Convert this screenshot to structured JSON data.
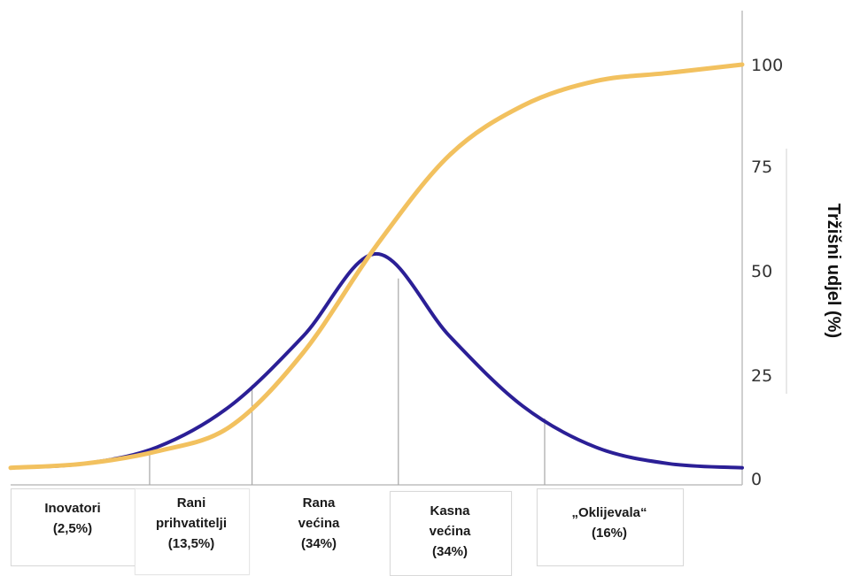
{
  "chart_data": {
    "type": "line",
    "xlabel": "",
    "ylabel": "Tržišni udjel (%)",
    "ylim": [
      0,
      100
    ],
    "yticks": [
      "0",
      "25",
      "50",
      "75",
      "100"
    ],
    "grid": false,
    "series": [
      {
        "color": "#2b1f96",
        "curve": "bell",
        "x": [
          0,
          1,
          2,
          3,
          4,
          5,
          6,
          7,
          8,
          9,
          10
        ],
        "values": [
          2,
          3,
          7,
          17,
          34,
          54,
          34,
          17,
          7,
          3,
          2
        ]
      },
      {
        "color": "#f2c15f",
        "curve": "s-curve",
        "x": [
          0,
          1,
          2,
          3,
          4,
          5,
          6,
          7,
          8,
          9,
          10
        ],
        "values": [
          2,
          3,
          6,
          12,
          30,
          56,
          78,
          90,
          96,
          98,
          100
        ]
      }
    ],
    "dividers_at_x": [
      1.9,
      3.3,
      5.3,
      7.3
    ],
    "segments": [
      {
        "lines": [
          "Inovatori",
          "(2,5%)"
        ]
      },
      {
        "lines": [
          "Rani",
          "prihvatitelji",
          "(13,5%)"
        ]
      },
      {
        "lines": [
          "Rana",
          "većina",
          "(34%)"
        ]
      },
      {
        "lines": [
          "Kasna",
          "većina",
          "(34%)"
        ]
      },
      {
        "lines": [
          "„Oklijevala“",
          "(16%)"
        ]
      }
    ]
  }
}
